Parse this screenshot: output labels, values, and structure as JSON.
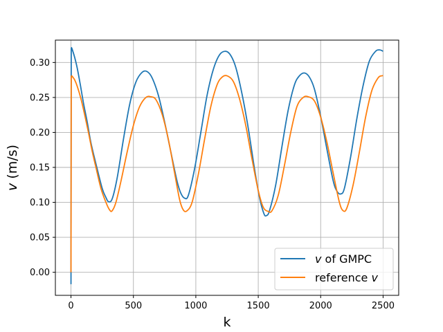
{
  "chart_data": {
    "type": "line",
    "title": "",
    "xlabel": "k",
    "ylabel": "v (m/s)",
    "ylabel_italic_part": "v",
    "ylabel_rest": " (m/s)",
    "xlim": [
      -125,
      2625
    ],
    "ylim": [
      -0.033,
      0.332
    ],
    "xticks": [
      0,
      500,
      1000,
      1500,
      2000,
      2500
    ],
    "xtick_labels": [
      "0",
      "500",
      "1000",
      "1500",
      "2000",
      "2500"
    ],
    "yticks": [
      0.0,
      0.05,
      0.1,
      0.15,
      0.2,
      0.25,
      0.3
    ],
    "ytick_labels": [
      "0.00",
      "0.05",
      "0.10",
      "0.15",
      "0.20",
      "0.25",
      "0.30"
    ],
    "grid": true,
    "legend_position": "lower-right",
    "series": [
      {
        "name": "v of GMPC",
        "name_italic": "v",
        "name_rest": " of GMPC",
        "color": "#1f77b4",
        "x": [
          0,
          2,
          5,
          15,
          30,
          50,
          75,
          100,
          130,
          160,
          200,
          250,
          280,
          300,
          330,
          370,
          420,
          470,
          520,
          570,
          610,
          650,
          700,
          750,
          800,
          850,
          880,
          910,
          940,
          990,
          1040,
          1090,
          1140,
          1190,
          1240,
          1280,
          1320,
          1370,
          1420,
          1470,
          1510,
          1545,
          1565,
          1590,
          1640,
          1690,
          1740,
          1790,
          1830,
          1870,
          1910,
          1950,
          2000,
          2050,
          2100,
          2130,
          2160,
          2190,
          2240,
          2290,
          2340,
          2390,
          2440,
          2470,
          2490,
          2500
        ],
        "y": [
          -0.017,
          0.32,
          0.321,
          0.316,
          0.307,
          0.292,
          0.268,
          0.242,
          0.215,
          0.185,
          0.155,
          0.12,
          0.107,
          0.101,
          0.105,
          0.135,
          0.19,
          0.24,
          0.272,
          0.286,
          0.287,
          0.278,
          0.253,
          0.215,
          0.172,
          0.13,
          0.113,
          0.106,
          0.11,
          0.148,
          0.2,
          0.253,
          0.29,
          0.311,
          0.316,
          0.31,
          0.293,
          0.255,
          0.206,
          0.148,
          0.107,
          0.084,
          0.081,
          0.088,
          0.125,
          0.18,
          0.232,
          0.268,
          0.281,
          0.285,
          0.279,
          0.262,
          0.223,
          0.176,
          0.131,
          0.116,
          0.112,
          0.12,
          0.165,
          0.22,
          0.267,
          0.302,
          0.316,
          0.318,
          0.317,
          0.316
        ]
      },
      {
        "name": "reference v",
        "name_italic": "v",
        "name_rest": "reference ",
        "color": "#ff7f0e",
        "x": [
          0,
          2,
          5,
          15,
          30,
          50,
          80,
          110,
          140,
          170,
          200,
          240,
          280,
          310,
          330,
          360,
          400,
          450,
          500,
          550,
          600,
          640,
          680,
          730,
          780,
          830,
          870,
          900,
          930,
          970,
          1020,
          1070,
          1120,
          1170,
          1210,
          1250,
          1300,
          1350,
          1400,
          1450,
          1500,
          1540,
          1580,
          1610,
          1660,
          1710,
          1760,
          1810,
          1860,
          1900,
          1950,
          2000,
          2050,
          2100,
          2150,
          2180,
          2210,
          2260,
          2310,
          2360,
          2410,
          2460,
          2490,
          2500
        ],
        "y": [
          0.0,
          0.278,
          0.281,
          0.279,
          0.275,
          0.266,
          0.248,
          0.225,
          0.2,
          0.173,
          0.15,
          0.12,
          0.1,
          0.089,
          0.088,
          0.1,
          0.13,
          0.172,
          0.21,
          0.237,
          0.25,
          0.251,
          0.247,
          0.226,
          0.19,
          0.142,
          0.104,
          0.089,
          0.088,
          0.1,
          0.14,
          0.19,
          0.237,
          0.268,
          0.279,
          0.281,
          0.273,
          0.248,
          0.21,
          0.162,
          0.117,
          0.093,
          0.087,
          0.088,
          0.11,
          0.153,
          0.2,
          0.237,
          0.25,
          0.251,
          0.245,
          0.222,
          0.186,
          0.142,
          0.1,
          0.088,
          0.092,
          0.125,
          0.172,
          0.222,
          0.26,
          0.278,
          0.281,
          0.281
        ]
      }
    ]
  }
}
